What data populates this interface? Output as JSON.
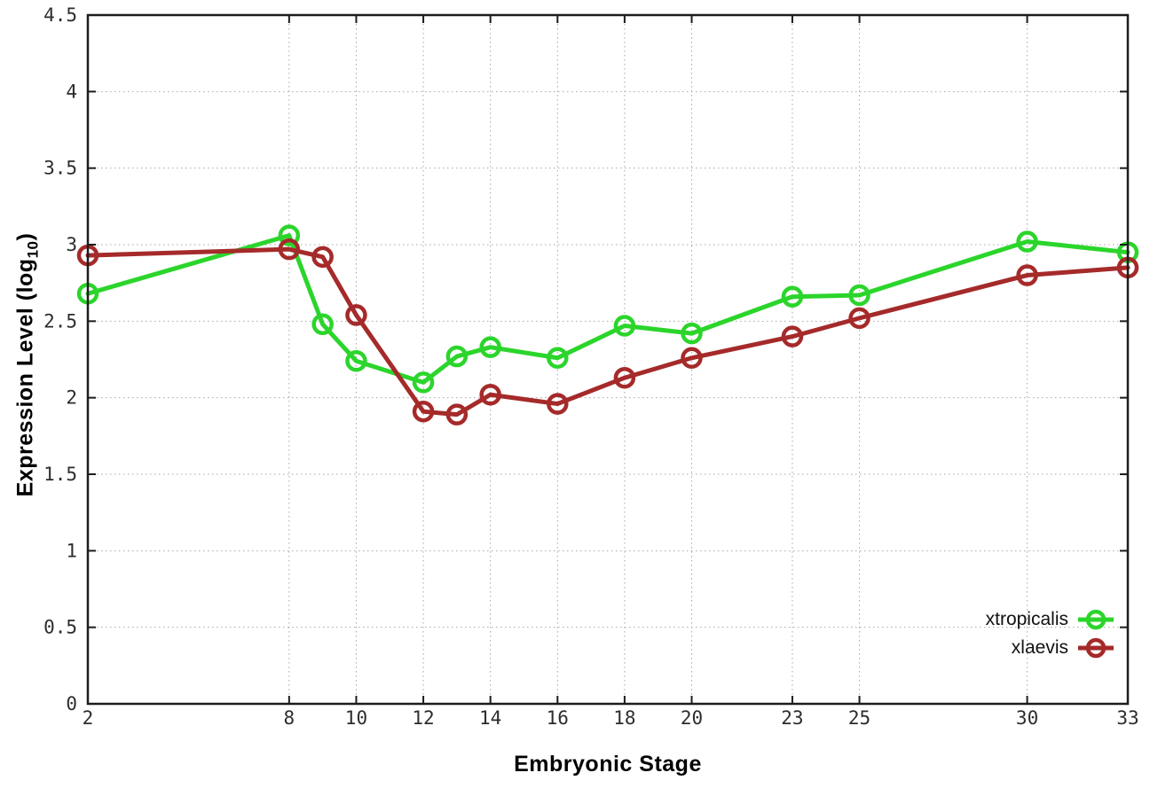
{
  "chart_data": {
    "type": "line",
    "title": "",
    "xlabel": "Embryonic Stage",
    "ylabel": {
      "text": "Expression Level (log",
      "sub": "10",
      "suffix": ")"
    },
    "x": [
      2,
      8,
      9,
      10,
      12,
      13,
      14,
      16,
      18,
      20,
      23,
      25,
      30,
      33
    ],
    "series": [
      {
        "name": "xtropicalis",
        "color": "#2bd52b",
        "values": [
          2.68,
          3.06,
          2.48,
          2.24,
          2.1,
          2.27,
          2.33,
          2.26,
          2.47,
          2.42,
          2.66,
          2.67,
          3.02,
          2.95
        ]
      },
      {
        "name": "xlaevis",
        "color": "#a52a2a",
        "values": [
          2.93,
          2.97,
          2.92,
          2.54,
          1.91,
          1.89,
          2.02,
          1.96,
          2.13,
          2.26,
          2.4,
          2.52,
          2.8,
          2.85
        ]
      }
    ],
    "xticks": [
      2,
      8,
      10,
      12,
      14,
      16,
      18,
      20,
      23,
      25,
      30,
      33
    ],
    "yticks": [
      0,
      0.5,
      1,
      1.5,
      2,
      2.5,
      3,
      3.5,
      4,
      4.5
    ],
    "xlim": [
      2,
      33
    ],
    "ylim": [
      0,
      4.5
    ],
    "grid": true,
    "legend_position": "bottom-right",
    "marker": "open-circle",
    "style": {
      "axis_color": "#1c1c1c",
      "grid_color": "#a6a6a6",
      "tick_label_color": "#2d2d2d",
      "background": "#ffffff"
    }
  }
}
